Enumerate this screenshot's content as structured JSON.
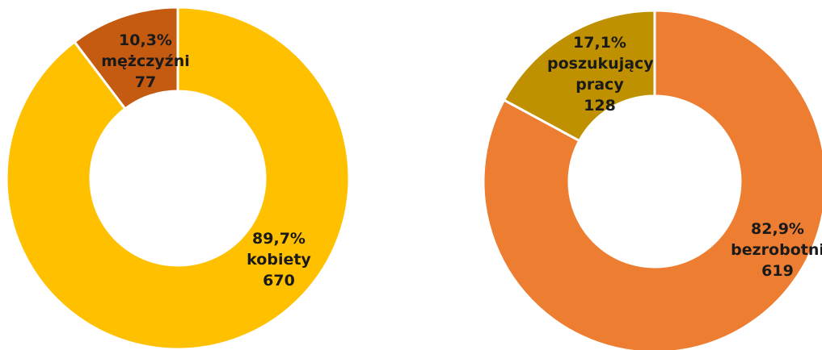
{
  "chart_data": [
    {
      "type": "donut",
      "categories": [
        "kobiety",
        "mężczyźni"
      ],
      "values": [
        89.7,
        10.3
      ],
      "value_labels": [
        "89,7%",
        "10,3%"
      ],
      "counts": [
        670,
        77
      ],
      "colors": [
        "#ffc000",
        "#c55a11"
      ]
    },
    {
      "type": "donut",
      "categories": [
        "bezrobotni",
        "poszukujący pracy"
      ],
      "values": [
        82.9,
        17.1
      ],
      "value_labels": [
        "82,9%",
        "17,1%"
      ],
      "counts": [
        619,
        128
      ],
      "colors": [
        "#ed7d31",
        "#bf9000"
      ]
    }
  ]
}
